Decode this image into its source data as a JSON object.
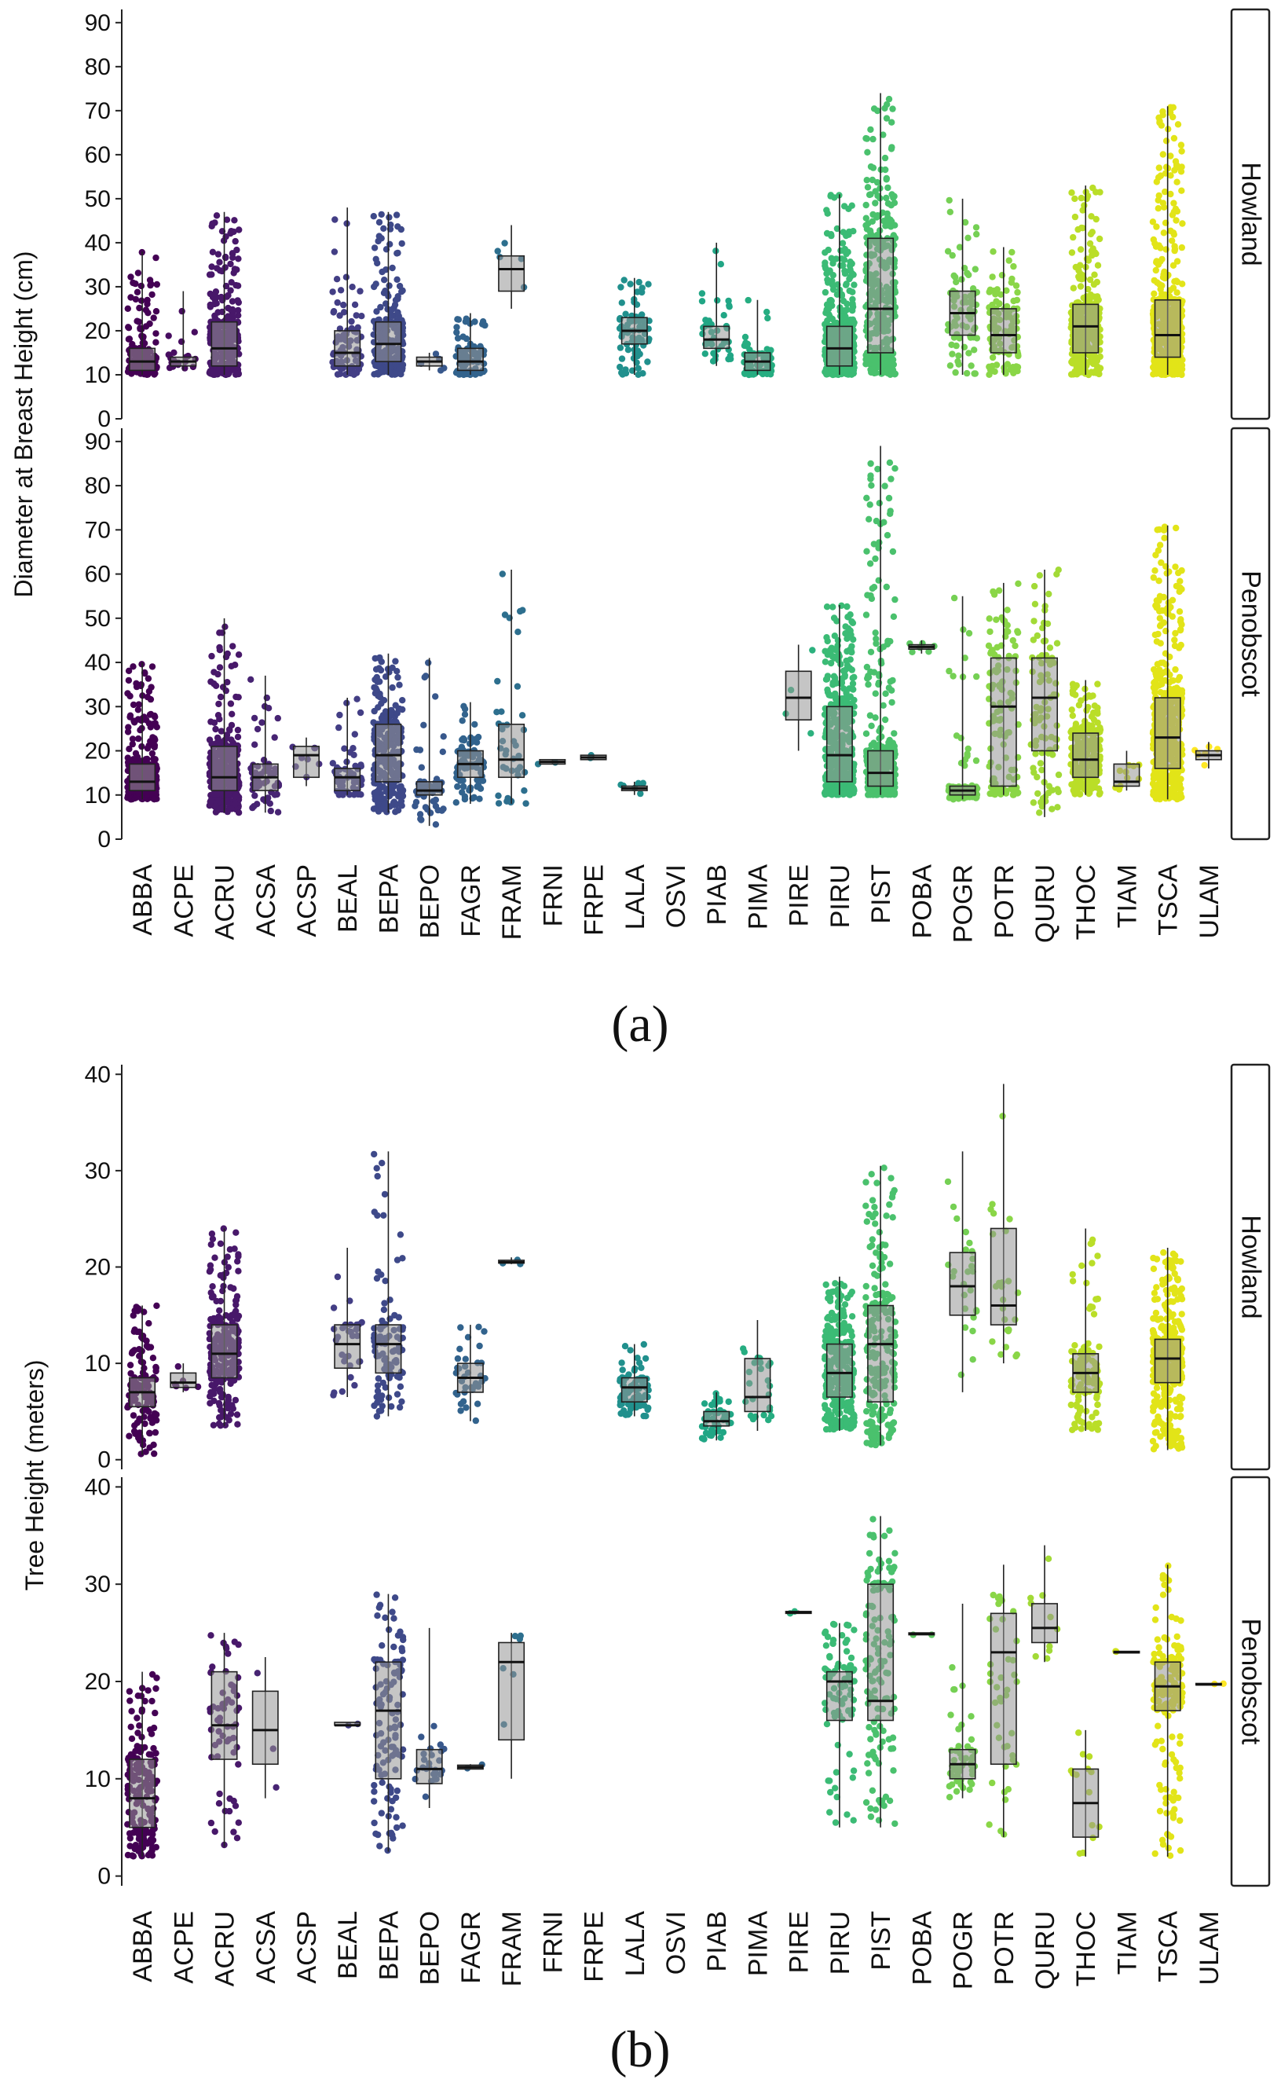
{
  "figure": {
    "label_a": "(a)",
    "label_b": "(b)"
  },
  "species": [
    "ABBA",
    "ACPE",
    "ACRU",
    "ACSA",
    "ACSP",
    "BEAL",
    "BEPA",
    "BEPO",
    "FAGR",
    "FRAM",
    "FRNI",
    "FRPE",
    "LALA",
    "OSVI",
    "PIAB",
    "PIMA",
    "PIRE",
    "PIRU",
    "PIST",
    "POBA",
    "POGR",
    "POTR",
    "QURU",
    "THOC",
    "TIAM",
    "TSCA",
    "ULAM"
  ],
  "colors": [
    "#440154",
    "#470d60",
    "#48186a",
    "#472473",
    "#46307e",
    "#433e85",
    "#3e4989",
    "#38588c",
    "#32638d",
    "#2d6f8e",
    "#297a8e",
    "#25848e",
    "#21908d",
    "#1e9b8a",
    "#21a685",
    "#26ad81",
    "#2cb17e",
    "#3bbb75",
    "#4ac16d",
    "#5ec962",
    "#75d054",
    "#8ad647",
    "#a2da37",
    "#bade28",
    "#cfe11c",
    "#e2e418",
    "#fde725"
  ],
  "chart_data": [
    {
      "type": "boxplot",
      "panel": "(a)",
      "ylabel": "Diameter at Breast Height (cm)",
      "facets": [
        {
          "name": "Howland",
          "ylim": [
            0,
            93
          ],
          "yticks": [
            0,
            10,
            20,
            30,
            40,
            50,
            60,
            70,
            80,
            90
          ],
          "boxes": {
            "ABBA": {
              "min": 10,
              "q1": 11,
              "med": 13,
              "q3": 16,
              "max": 38,
              "n": 160
            },
            "ACPE": {
              "min": 11,
              "q1": 12,
              "med": 13,
              "q3": 14,
              "max": 29,
              "n": 20
            },
            "ACRU": {
              "min": 10,
              "q1": 12,
              "med": 16,
              "q3": 22,
              "max": 47,
              "n": 320
            },
            "BEAL": {
              "min": 10,
              "q1": 12,
              "med": 15,
              "q3": 20,
              "max": 48,
              "n": 90
            },
            "BEPA": {
              "min": 10,
              "q1": 13,
              "med": 17,
              "q3": 22,
              "max": 47,
              "n": 220
            },
            "BEPO": {
              "min": 11,
              "q1": 12,
              "med": 13,
              "q3": 14,
              "max": 15,
              "n": 5
            },
            "FAGR": {
              "min": 10,
              "q1": 11,
              "med": 13,
              "q3": 16,
              "max": 24,
              "n": 80
            },
            "FRAM": {
              "min": 25,
              "q1": 29,
              "med": 34,
              "q3": 37,
              "max": 44,
              "n": 5
            },
            "LALA": {
              "min": 10,
              "q1": 17,
              "med": 20,
              "q3": 23,
              "max": 32,
              "n": 80
            },
            "PIAB": {
              "min": 12,
              "q1": 16,
              "med": 18,
              "q3": 21,
              "max": 40,
              "n": 40
            },
            "PIMA": {
              "min": 10,
              "q1": 11,
              "med": 13,
              "q3": 15,
              "max": 27,
              "n": 70
            },
            "PIRU": {
              "min": 10,
              "q1": 12,
              "med": 16,
              "q3": 21,
              "max": 51,
              "n": 500
            },
            "PIST": {
              "min": 10,
              "q1": 15,
              "med": 25,
              "q3": 41,
              "max": 74,
              "n": 320
            },
            "POGR": {
              "min": 10,
              "q1": 19,
              "med": 24,
              "q3": 29,
              "max": 50,
              "n": 80
            },
            "POTR": {
              "min": 10,
              "q1": 15,
              "med": 19,
              "q3": 25,
              "max": 39,
              "n": 110
            },
            "THOC": {
              "min": 10,
              "q1": 15,
              "med": 21,
              "q3": 26,
              "max": 53,
              "n": 320
            },
            "TSCA": {
              "min": 10,
              "q1": 14,
              "med": 19,
              "q3": 27,
              "max": 71,
              "n": 450
            }
          }
        },
        {
          "name": "Penobscot",
          "ylim": [
            0,
            93
          ],
          "yticks": [
            0,
            10,
            20,
            30,
            40,
            50,
            60,
            70,
            80,
            90
          ],
          "boxes": {
            "ABBA": {
              "min": 9,
              "q1": 11,
              "med": 13,
              "q3": 17,
              "max": 40,
              "n": 320
            },
            "ACRU": {
              "min": 6,
              "q1": 11,
              "med": 14,
              "q3": 21,
              "max": 50,
              "n": 320
            },
            "ACSA": {
              "min": 6,
              "q1": 11,
              "med": 14,
              "q3": 17,
              "max": 37,
              "n": 60
            },
            "ACSP": {
              "min": 12,
              "q1": 14,
              "med": 19,
              "q3": 21,
              "max": 23,
              "n": 8
            },
            "BEAL": {
              "min": 10,
              "q1": 11,
              "med": 14,
              "q3": 16,
              "max": 32,
              "n": 60
            },
            "BEPA": {
              "min": 6,
              "q1": 13,
              "med": 19,
              "q3": 26,
              "max": 42,
              "n": 240
            },
            "BEPO": {
              "min": 3,
              "q1": 10,
              "med": 11,
              "q3": 13,
              "max": 41,
              "n": 60
            },
            "FAGR": {
              "min": 8,
              "q1": 14,
              "med": 17,
              "q3": 20,
              "max": 31,
              "n": 90
            },
            "FRAM": {
              "min": 8,
              "q1": 14,
              "med": 18,
              "q3": 26,
              "max": 61,
              "n": 40
            },
            "FRNI": {
              "min": 17,
              "q1": 17,
              "med": 17.5,
              "q3": 18,
              "max": 18,
              "n": 2
            },
            "FRPE": {
              "min": 18,
              "q1": 18,
              "med": 18.5,
              "q3": 19,
              "max": 19,
              "n": 2
            },
            "LALA": {
              "min": 10,
              "q1": 11,
              "med": 11.5,
              "q3": 12,
              "max": 13,
              "n": 6
            },
            "PIRE": {
              "min": 20,
              "q1": 27,
              "med": 32,
              "q3": 38,
              "max": 44,
              "n": 4
            },
            "PIRU": {
              "min": 10,
              "q1": 13,
              "med": 19,
              "q3": 30,
              "max": 53,
              "n": 420
            },
            "PIST": {
              "min": 10,
              "q1": 12,
              "med": 15,
              "q3": 20,
              "max": 89,
              "n": 360
            },
            "POBA": {
              "min": 42,
              "q1": 43,
              "med": 43.5,
              "q3": 44,
              "max": 45,
              "n": 6
            },
            "POGR": {
              "min": 9,
              "q1": 10,
              "med": 11,
              "q3": 12,
              "max": 55,
              "n": 90
            },
            "POTR": {
              "min": 10,
              "q1": 12,
              "med": 30,
              "q3": 41,
              "max": 58,
              "n": 120
            },
            "QURU": {
              "min": 5,
              "q1": 20,
              "med": 32,
              "q3": 41,
              "max": 61,
              "n": 90
            },
            "THOC": {
              "min": 10,
              "q1": 14,
              "med": 18,
              "q3": 24,
              "max": 36,
              "n": 260
            },
            "TIAM": {
              "min": 11,
              "q1": 12,
              "med": 13,
              "q3": 17,
              "max": 20,
              "n": 10
            },
            "TSCA": {
              "min": 9,
              "q1": 16,
              "med": 23,
              "q3": 32,
              "max": 71,
              "n": 500
            },
            "ULAM": {
              "min": 16,
              "q1": 18,
              "med": 19,
              "q3": 20,
              "max": 22,
              "n": 6
            }
          }
        }
      ]
    },
    {
      "type": "boxplot",
      "panel": "(b)",
      "ylabel": "Tree Height (meters)",
      "facets": [
        {
          "name": "Howland",
          "ylim": [
            -1,
            41
          ],
          "yticks": [
            0,
            10,
            20,
            30,
            40
          ],
          "boxes": {
            "ABBA": {
              "min": 0.5,
              "q1": 5.5,
              "med": 7,
              "q3": 8.5,
              "max": 16,
              "n": 130
            },
            "ACPE": {
              "min": 7,
              "q1": 7.5,
              "med": 8,
              "q3": 9,
              "max": 10,
              "n": 6
            },
            "ACRU": {
              "min": 3.5,
              "q1": 8.5,
              "med": 11,
              "q3": 14,
              "max": 24,
              "n": 220
            },
            "BEAL": {
              "min": 6.5,
              "q1": 9.5,
              "med": 12,
              "q3": 14,
              "max": 22,
              "n": 30
            },
            "BEPA": {
              "min": 4.5,
              "q1": 9,
              "med": 12,
              "q3": 14,
              "max": 32,
              "n": 100
            },
            "FAGR": {
              "min": 4,
              "q1": 7,
              "med": 8.5,
              "q3": 10,
              "max": 14,
              "n": 35
            },
            "FRAM": {
              "min": 20.3,
              "q1": 20.4,
              "med": 20.5,
              "q3": 20.7,
              "max": 21,
              "n": 4
            },
            "LALA": {
              "min": 4.5,
              "q1": 6,
              "med": 7.5,
              "q3": 8.5,
              "max": 12,
              "n": 80
            },
            "PIAB": {
              "min": 2,
              "q1": 3.5,
              "med": 4,
              "q3": 5,
              "max": 7,
              "n": 50
            },
            "PIMA": {
              "min": 3,
              "q1": 5,
              "med": 6.5,
              "q3": 10.5,
              "max": 14.5,
              "n": 25
            },
            "PIRU": {
              "min": 3,
              "q1": 6.5,
              "med": 9,
              "q3": 12,
              "max": 19,
              "n": 300
            },
            "PIST": {
              "min": 1.5,
              "q1": 6,
              "med": 12,
              "q3": 16,
              "max": 30.5,
              "n": 220
            },
            "POGR": {
              "min": 7,
              "q1": 15,
              "med": 18,
              "q3": 21.5,
              "max": 32,
              "n": 25
            },
            "POTR": {
              "min": 10,
              "q1": 14,
              "med": 16,
              "q3": 24,
              "max": 39,
              "n": 25
            },
            "THOC": {
              "min": 3,
              "q1": 7,
              "med": 9,
              "q3": 11,
              "max": 24,
              "n": 120
            },
            "TSCA": {
              "min": 1,
              "q1": 8,
              "med": 10.5,
              "q3": 12.5,
              "max": 22,
              "n": 400
            }
          }
        },
        {
          "name": "Penobscot",
          "ylim": [
            -1,
            41
          ],
          "yticks": [
            0,
            10,
            20,
            30,
            40
          ],
          "boxes": {
            "ABBA": {
              "min": 2,
              "q1": 5,
              "med": 8,
              "q3": 12,
              "max": 21,
              "n": 180
            },
            "ACRU": {
              "min": 3,
              "q1": 12,
              "med": 15.5,
              "q3": 21,
              "max": 25,
              "n": 60
            },
            "ACSA": {
              "min": 8,
              "q1": 11.5,
              "med": 15,
              "q3": 19,
              "max": 22.5,
              "n": 3
            },
            "BEAL": {
              "min": 15.5,
              "q1": 15.5,
              "med": 15.5,
              "q3": 15.8,
              "max": 15.8,
              "n": 2
            },
            "BEPA": {
              "min": 2.5,
              "q1": 10,
              "med": 17,
              "q3": 22,
              "max": 29,
              "n": 110
            },
            "BEPO": {
              "min": 7,
              "q1": 9.5,
              "med": 11,
              "q3": 13,
              "max": 25.5,
              "n": 25
            },
            "FAGR": {
              "min": 11,
              "q1": 11,
              "med": 11.2,
              "q3": 11.4,
              "max": 11.5,
              "n": 2
            },
            "FRAM": {
              "min": 10,
              "q1": 14,
              "med": 22,
              "q3": 24,
              "max": 25,
              "n": 6
            },
            "PIRE": {
              "min": 27,
              "q1": 27,
              "med": 27.1,
              "q3": 27.2,
              "max": 27.3,
              "n": 2
            },
            "PIRU": {
              "min": 5,
              "q1": 16,
              "med": 20,
              "q3": 21,
              "max": 26,
              "n": 80
            },
            "PIST": {
              "min": 5,
              "q1": 16,
              "med": 18,
              "q3": 30,
              "max": 37,
              "n": 130
            },
            "POBA": {
              "min": 24.8,
              "q1": 24.8,
              "med": 24.9,
              "q3": 25,
              "max": 25,
              "n": 2
            },
            "POGR": {
              "min": 8,
              "q1": 10,
              "med": 11.5,
              "q3": 13,
              "max": 28,
              "n": 50
            },
            "POTR": {
              "min": 4,
              "q1": 11.5,
              "med": 23,
              "q3": 27,
              "max": 32,
              "n": 40
            },
            "QURU": {
              "min": 22,
              "q1": 24,
              "med": 25.5,
              "q3": 28,
              "max": 34,
              "n": 10
            },
            "THOC": {
              "min": 2,
              "q1": 4,
              "med": 7.5,
              "q3": 11,
              "max": 15,
              "n": 14
            },
            "TIAM": {
              "min": 23,
              "q1": 23,
              "med": 23,
              "q3": 23.1,
              "max": 23.1,
              "n": 2
            },
            "TSCA": {
              "min": 2,
              "q1": 17,
              "med": 19.5,
              "q3": 22,
              "max": 32,
              "n": 160
            },
            "ULAM": {
              "min": 19.7,
              "q1": 19.7,
              "med": 19.7,
              "q3": 19.8,
              "max": 19.8,
              "n": 2
            }
          }
        }
      ]
    }
  ]
}
